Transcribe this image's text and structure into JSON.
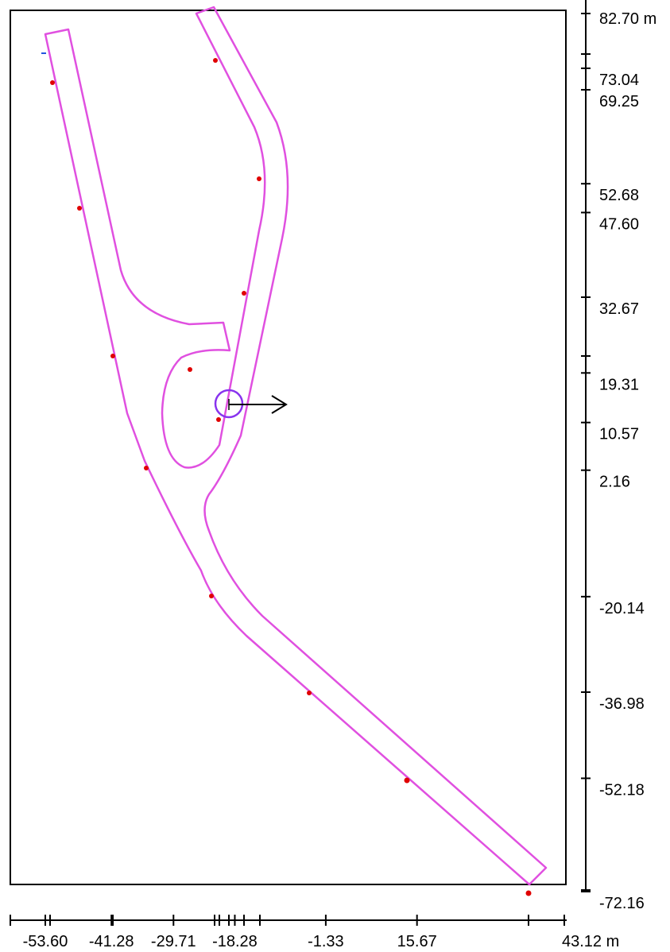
{
  "colors": {
    "track": "#e050e0",
    "marker": "#e00000",
    "cursor": "#8833ee",
    "axis": "#000000",
    "blue_mark": "#2255dd"
  },
  "axes": {
    "y_ticks": [
      {
        "value": 82.7,
        "label": "82.70 m"
      },
      {
        "value": 73.04,
        "label": "73.04"
      },
      {
        "value": 69.25,
        "label": "69.25"
      },
      {
        "value": 52.68,
        "label": "52.68"
      },
      {
        "value": 47.6,
        "label": "47.60"
      },
      {
        "value": 32.67,
        "label": "32.67"
      },
      {
        "value": 19.31,
        "label": "19.31"
      },
      {
        "value": 10.57,
        "label": "10.57"
      },
      {
        "value": 2.16,
        "label": "2.16"
      },
      {
        "value": -20.14,
        "label": "-20.14"
      },
      {
        "value": -36.98,
        "label": "-36.98"
      },
      {
        "value": -52.18,
        "label": "-52.18"
      },
      {
        "value": -72.16,
        "label": "-72.16"
      }
    ],
    "x_ticks": [
      {
        "value": -53.6,
        "label": "-53.60"
      },
      {
        "value": -41.28,
        "label": "-41.28"
      },
      {
        "value": -29.71,
        "label": "-29.71"
      },
      {
        "value": -18.28,
        "label": "-18.28"
      },
      {
        "value": -1.33,
        "label": "-1.33"
      },
      {
        "value": 15.67,
        "label": "15.67"
      },
      {
        "value": 43.12,
        "label": "43.12 m"
      }
    ]
  }
}
